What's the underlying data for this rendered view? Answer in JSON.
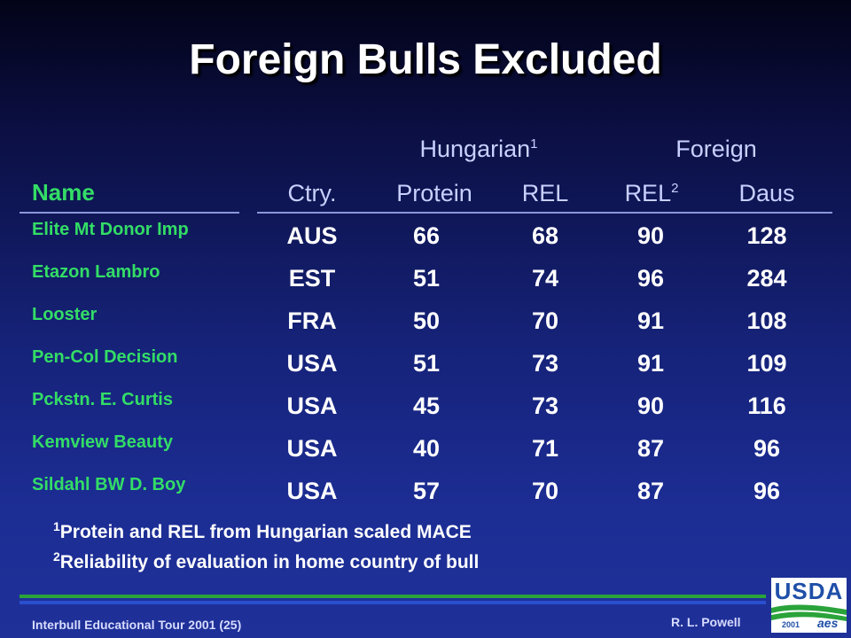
{
  "title": "Foreign Bulls Excluded",
  "group_headers": {
    "hungarian": "Hungarian",
    "hungarian_sup": "1",
    "foreign": "Foreign"
  },
  "columns": {
    "name": "Name",
    "ctry": "Ctry.",
    "protein": "Protein",
    "rel": "REL",
    "rel2": "REL",
    "rel2_sup": "2",
    "daus": "Daus"
  },
  "rows": [
    {
      "name": "Elite Mt Donor Imp",
      "ctry": "AUS",
      "protein": "66",
      "rel": "68",
      "rel2": "90",
      "daus": "128"
    },
    {
      "name": "Etazon Lambro",
      "ctry": "EST",
      "protein": "51",
      "rel": "74",
      "rel2": "96",
      "daus": "284"
    },
    {
      "name": "Looster",
      "ctry": "FRA",
      "protein": "50",
      "rel": "70",
      "rel2": "91",
      "daus": "108"
    },
    {
      "name": "Pen-Col Decision",
      "ctry": "USA",
      "protein": "51",
      "rel": "73",
      "rel2": "91",
      "daus": "109"
    },
    {
      "name": "Pckstn. E. Curtis",
      "ctry": "USA",
      "protein": "45",
      "rel": "73",
      "rel2": "90",
      "daus": "116"
    },
    {
      "name": "Kemview Beauty",
      "ctry": "USA",
      "protein": "40",
      "rel": "71",
      "rel2": "87",
      "daus": "96"
    },
    {
      "name": "Sildahl BW D. Boy",
      "ctry": "USA",
      "protein": "57",
      "rel": "70",
      "rel2": "87",
      "daus": "96"
    }
  ],
  "footnotes": [
    {
      "sup": "1",
      "text": "Protein and REL from Hungarian scaled MACE"
    },
    {
      "sup": "2",
      "text": "Reliability of evaluation in home country of bull"
    }
  ],
  "footer": {
    "left": "Interbull Educational Tour 2001 (25)",
    "right": "R. L. Powell"
  },
  "logo": {
    "text": "USDA",
    "year": "2001",
    "mark": "aes"
  }
}
